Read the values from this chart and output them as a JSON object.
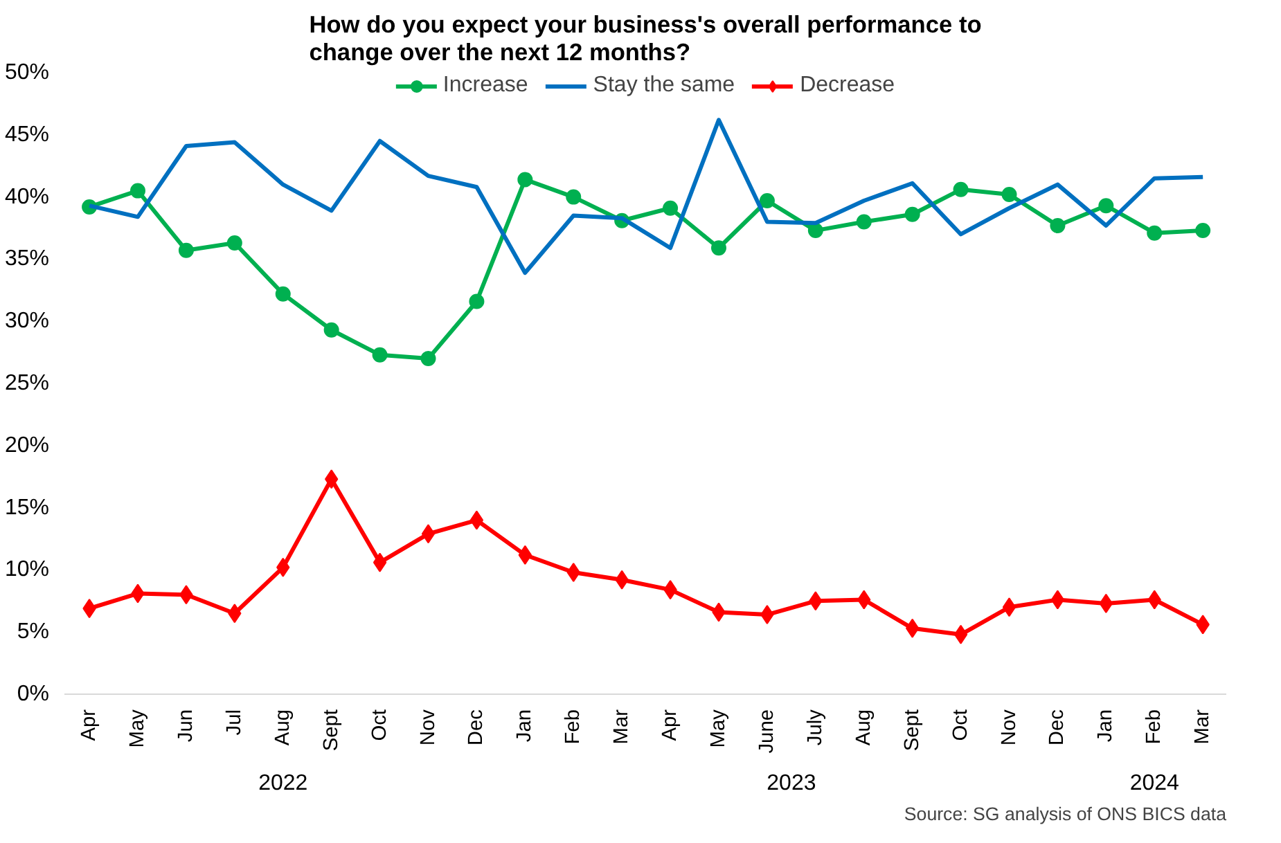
{
  "chart_data": {
    "type": "line",
    "title": "How do you expect your business's overall performance to change over the next 12 months?",
    "x": [
      "2022-04",
      "2022-05",
      "2022-06",
      "2022-07",
      "2022-08",
      "2022-09",
      "2022-10",
      "2022-11",
      "2022-12",
      "2023-01",
      "2023-02",
      "2023-03",
      "2023-04",
      "2023-05",
      "2023-06",
      "2023-07",
      "2023-08",
      "2023-09",
      "2023-10",
      "2023-11",
      "2023-12",
      "2024-01",
      "2024-02",
      "2024-03"
    ],
    "xticks": [
      {
        "value": "2022-04",
        "label": "Apr"
      },
      {
        "value": "2022-05",
        "label": "May"
      },
      {
        "value": "2022-06",
        "label": "Jun"
      },
      {
        "value": "2022-07",
        "label": "Jul"
      },
      {
        "value": "2022-08",
        "label": "Aug"
      },
      {
        "value": "2022-09",
        "label": "Sept"
      },
      {
        "value": "2022-10",
        "label": "Oct"
      },
      {
        "value": "2022-11",
        "label": "Nov"
      },
      {
        "value": "2022-12",
        "label": "Dec"
      },
      {
        "value": "2023-01",
        "label": "Jan"
      },
      {
        "value": "2023-02",
        "label": "Feb"
      },
      {
        "value": "2023-03",
        "label": "Mar"
      },
      {
        "value": "2023-04",
        "label": "Apr"
      },
      {
        "value": "2023-05",
        "label": "May"
      },
      {
        "value": "2023-06",
        "label": "June"
      },
      {
        "value": "2023-07",
        "label": "July"
      },
      {
        "value": "2023-08",
        "label": "Aug"
      },
      {
        "value": "2023-09",
        "label": "Sept"
      },
      {
        "value": "2023-10",
        "label": "Oct"
      },
      {
        "value": "2023-11",
        "label": "Nov"
      },
      {
        "value": "2023-12",
        "label": "Dec"
      },
      {
        "value": "2024-01",
        "label": "Jan"
      },
      {
        "value": "2024-02",
        "label": "Feb"
      },
      {
        "value": "2024-03",
        "label": "Mar"
      }
    ],
    "xlim": [
      "2022-03-16",
      "2024-03-16"
    ],
    "ylim": [
      0,
      50
    ],
    "yticks": [
      {
        "value": 0,
        "label": "0%"
      },
      {
        "value": 5,
        "label": "5%"
      },
      {
        "value": 10,
        "label": "10%"
      },
      {
        "value": 15,
        "label": "15%"
      },
      {
        "value": 20,
        "label": "20%"
      },
      {
        "value": 25,
        "label": "25%"
      },
      {
        "value": 30,
        "label": "30%"
      },
      {
        "value": 35,
        "label": "35%"
      },
      {
        "value": 40,
        "label": "40%"
      },
      {
        "value": 45,
        "label": "45%"
      },
      {
        "value": 50,
        "label": "50%"
      }
    ],
    "legend": "top",
    "series": [
      {
        "name": "Increase",
        "color": "#00b050",
        "marker": "circle",
        "values": [
          39.2,
          40.5,
          35.7,
          36.3,
          32.2,
          29.3,
          27.3,
          27.0,
          31.6,
          41.4,
          40.0,
          38.1,
          39.1,
          35.9,
          39.7,
          37.3,
          38.0,
          38.6,
          40.6,
          40.2,
          37.7,
          39.3,
          37.1,
          37.3
        ]
      },
      {
        "name": "Stay the same",
        "color": "#0070c0",
        "marker": "none",
        "values": [
          39.3,
          38.4,
          44.1,
          44.4,
          41.0,
          38.9,
          44.5,
          41.7,
          40.8,
          33.9,
          38.5,
          38.3,
          35.9,
          46.2,
          38.0,
          37.9,
          39.7,
          41.1,
          37.0,
          39.1,
          41.0,
          37.7,
          41.5,
          41.6
        ]
      },
      {
        "name": "Decrease",
        "color": "#ff0000",
        "marker": "diamond",
        "values": [
          6.9,
          8.1,
          8.0,
          6.5,
          10.2,
          17.3,
          10.6,
          12.9,
          14.0,
          11.2,
          9.8,
          9.2,
          8.4,
          6.6,
          6.4,
          7.5,
          7.6,
          5.3,
          4.8,
          7.0,
          7.6,
          7.3,
          7.6,
          5.6
        ]
      }
    ],
    "annotations": [
      "2022",
      "2023",
      "2024",
      "Source: SG analysis of ONS BICS data"
    ]
  }
}
